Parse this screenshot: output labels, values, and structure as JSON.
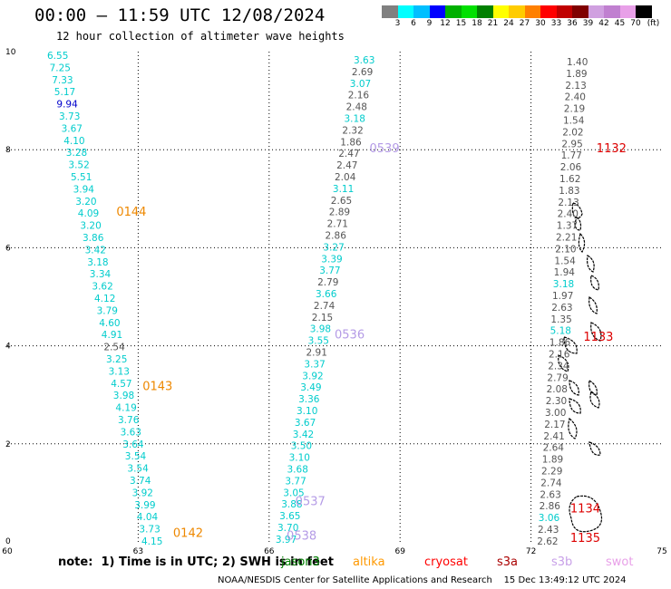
{
  "title": "00:00 – 11:59 UTC 12/08/2024",
  "subtitle": "12 hour collection of altimeter wave heights",
  "colorbar": {
    "colors": [
      "#808080",
      "#00ffff",
      "#00bfff",
      "#0000ff",
      "#00b000",
      "#00e000",
      "#008000",
      "#ffff00",
      "#ffcc00",
      "#ff8000",
      "#ff0000",
      "#c00000",
      "#800000",
      "#d0a0e0",
      "#c080d0",
      "#e8a0e8",
      "#000000"
    ],
    "labels": [
      "3",
      "6",
      "9",
      "12",
      "15",
      "18",
      "21",
      "24",
      "27",
      "30",
      "33",
      "36",
      "39",
      "42",
      "45",
      "70",
      "(ft)"
    ]
  },
  "chart_data": {
    "type": "scatter",
    "title": "00:00 – 11:59 UTC 12/08/2024",
    "subtitle": "12 hour collection of altimeter wave heights",
    "xlim": [
      60,
      75
    ],
    "ylim": [
      0,
      10
    ],
    "x_ticks": [
      "60",
      "63",
      "66",
      "69",
      "72",
      "75"
    ],
    "y_ticks": [
      "0",
      "2",
      "4",
      "6",
      "8",
      "10"
    ],
    "grid": true,
    "tracks": [
      {
        "satellite": "jason3",
        "x": [
          60.9,
          61.0,
          61.1,
          61.2,
          61.3,
          61.4,
          61.5,
          61.6,
          61.7,
          61.8,
          61.9,
          62.0,
          62.1,
          62.2,
          62.3,
          62.4,
          62.5,
          62.6,
          62.7,
          62.8,
          62.9,
          63.0,
          63.1,
          63.2
        ],
        "y": [
          10.0,
          9.6,
          9.0,
          8.6,
          8.0,
          7.5,
          7.0,
          6.6,
          6.1,
          5.7,
          5.2,
          4.8,
          4.4,
          3.9,
          3.5,
          3.0,
          2.6,
          2.1,
          1.8,
          1.4,
          1.0,
          0.6,
          0.3,
          0.0
        ],
        "labels": [
          "6.55",
          "7.25",
          "7.33",
          "5.17",
          "9.94",
          "3.73",
          "3.67",
          "4.10",
          "3.28",
          "3.52",
          "5.51",
          "3.94",
          "3.20",
          "4.09",
          "3.20",
          "3.86",
          "3.42",
          "3.18",
          "3.34",
          "3.62",
          "4.12",
          "3.79",
          "4.60",
          "4.91",
          "2.54",
          "3.25",
          "3.13",
          "4.57",
          "3.98",
          "4.19",
          "3.76",
          "3.63",
          "3.64",
          "3.54",
          "3.54",
          "3.74",
          "3.92",
          "3.99",
          "4.04",
          "3.73",
          "4.15"
        ],
        "label_x": [
          61,
          61,
          61.1,
          61.1,
          61.2,
          61.3,
          61.3,
          61.5,
          61.5,
          61.6,
          61.7,
          61.8,
          61.9,
          61.9,
          62.0,
          62.1,
          62.0,
          62.1,
          62.2,
          62.3,
          62.4,
          62.4,
          62.5,
          62.6,
          62.6,
          62.7,
          62.8,
          62.8,
          62.9,
          63.0,
          63.0,
          63.1,
          63.1,
          63.2,
          63.2,
          63.3,
          63.3,
          63.4,
          63.5,
          63.5,
          63.6
        ],
        "label_y": [
          9.75,
          9.45,
          9.15,
          8.85,
          8.55,
          8.3,
          8.05,
          7.75,
          7.5,
          7.2,
          6.95,
          6.65,
          6.4,
          6.15,
          5.85,
          5.6,
          5.35,
          5.1,
          4.8,
          4.55,
          4.3,
          4.0,
          3.75,
          3.5,
          3.25,
          2.95,
          2.7,
          2.45,
          2.15,
          1.9,
          1.65,
          1.4,
          1.1,
          0.85,
          0.6,
          0.35,
          0.1,
          -0.15,
          -0.4,
          -0.65,
          -0.9
        ],
        "passes": [
          {
            "time": "0144",
            "x": 62.5,
            "y": 6.65
          },
          {
            "time": "0143",
            "x": 63.1,
            "y": 3.1
          },
          {
            "time": "0142",
            "x": 63.8,
            "y": 0.1
          }
        ]
      },
      {
        "satellite": "swot",
        "labels": [
          "3.63",
          "2.69",
          "3.07",
          "2.16",
          "2.48",
          "3.18",
          "2.32",
          "1.86",
          "2.47",
          "2.47",
          "2.04",
          "3.11",
          "2.65",
          "2.89",
          "2.71",
          "2.86",
          "3.27",
          "3.39",
          "3.77",
          "2.79",
          "3.66",
          "2.74",
          "2.15",
          "3.98",
          "3.55",
          "2.91",
          "3.37",
          "3.92",
          "3.49",
          "3.36",
          "3.10",
          "3.67",
          "3.42",
          "3.50",
          "3.10",
          "3.68",
          "3.77",
          "3.05",
          "3.88",
          "3.65",
          "3.70",
          "3.97"
        ],
        "passes": [
          {
            "time": "0539",
            "x": 68.3,
            "y": 7.95
          },
          {
            "time": "0536",
            "x": 67.5,
            "y": 4.15
          },
          {
            "time": "0537",
            "x": 66.6,
            "y": 0.75
          },
          {
            "time": "0538",
            "x": 66.4,
            "y": 0.05
          }
        ]
      },
      {
        "satellite": "cryosat",
        "labels": [
          "1.40",
          "1.89",
          "2.13",
          "2.40",
          "2.19",
          "1.54",
          "2.02",
          "2.95",
          "1.77",
          "2.06",
          "1.62",
          "1.83",
          "2.13",
          "2.40",
          "1.37",
          "2.21",
          "2.10",
          "1.54",
          "1.94",
          "3.18",
          "1.97",
          "2.63",
          "1.35",
          "5.18",
          "1.86",
          "2.16",
          "2.34",
          "2.79",
          "2.08",
          "2.30",
          "3.00",
          "2.17",
          "2.41",
          "2.64",
          "1.89",
          "2.29",
          "2.74",
          "2.63",
          "2.86",
          "3.06",
          "2.43",
          "2.62"
        ],
        "passes": [
          {
            "time": "1132",
            "x": 73.5,
            "y": 7.95
          },
          {
            "time": "1133",
            "x": 73.2,
            "y": 4.1
          },
          {
            "time": "1134",
            "x": 72.9,
            "y": 0.6
          },
          {
            "time": "1135",
            "x": 72.9,
            "y": 0.0
          }
        ]
      }
    ]
  },
  "note": "note:  1) Time is in UTC; 2) SWH is in feet",
  "satellites": [
    {
      "name": "jason3",
      "color": "#008000"
    },
    {
      "name": "altika",
      "color": "#ff9900"
    },
    {
      "name": "cryosat",
      "color": "#ff0000"
    },
    {
      "name": "s3a",
      "color": "#aa0000"
    },
    {
      "name": "s3b",
      "color": "#c8a0e8"
    },
    {
      "name": "swot",
      "color": "#e8a0e8"
    }
  ],
  "footer": "NOAA/NESDIS Center for Satellite Applications and Research    15 Dec 13:49:12 UTC 2024",
  "colors": {
    "cyan_label": "#00cccc",
    "gray_label": "#555555",
    "blue_label": "#0000cc",
    "orange_pass": "#ee8800",
    "purple_pass": "#b49be6",
    "red_pass": "#dd0000",
    "grid": "#000000"
  }
}
